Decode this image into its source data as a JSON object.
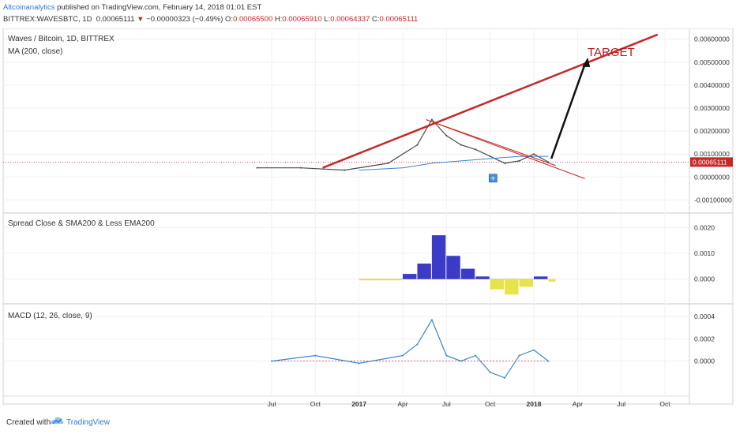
{
  "header": {
    "author": "Altcoinanalytics",
    "published": " published on TradingView.com, February 14, 2018 01:01 EST",
    "symbol": "BITTREX:WAVESBTC, 1D",
    "last": "0.00065111",
    "arrow": "▼",
    "change": "−0.00000323 (−0.49%)",
    "o_label": "O:",
    "o": "0.00065500",
    "h_label": "H:",
    "h": "0.00065910",
    "l_label": "L:",
    "l": "0.00064337",
    "c_label": "C:",
    "c": "0.00065111"
  },
  "footer": {
    "created": "Created with",
    "brand": "TradingView"
  },
  "colors": {
    "price": "#4a4a4a",
    "ma": "#3a86c8",
    "trend": "#c62828",
    "hist_pos": "#3b3bc8",
    "hist_neg": "#e7e34b",
    "macd": "#3a86c8",
    "signal": "#e08c2f",
    "macd_hist": "#e0236b",
    "last_badge": "#c62828",
    "marker": "#4a90d9"
  },
  "chart_data": [
    {
      "type": "line",
      "title": "Waves / Bitcoin, 1D, BITTREX",
      "subtitle": "MA (200, close)",
      "y_ticks": [
        "0.00600000",
        "0.00500000",
        "0.00400000",
        "0.00300000",
        "0.00200000",
        "0.00100000",
        "0.00000000",
        "-0.00100000"
      ],
      "ylim": [
        -0.0015,
        0.0064
      ],
      "x_ticks": [
        "Jul",
        "Oct",
        "2017",
        "Apr",
        "Jul",
        "Oct",
        "2018",
        "Apr",
        "Jul",
        "Oct"
      ],
      "last_value_label": "0.00065111",
      "annotation": "TARGET",
      "series": [
        {
          "name": "Close",
          "x": [
            "2016-06",
            "2016-09",
            "2016-12",
            "2017-03",
            "2017-05",
            "2017-06",
            "2017-07",
            "2017-08",
            "2017-09",
            "2017-10",
            "2017-11",
            "2017-12",
            "2018-01",
            "2018-02"
          ],
          "values": [
            0.0004,
            0.0004,
            0.0003,
            0.0006,
            0.0014,
            0.0025,
            0.0018,
            0.0014,
            0.0012,
            0.0009,
            0.0006,
            0.0007,
            0.001,
            0.00065
          ]
        },
        {
          "name": "MA (200, close)",
          "x": [
            "2017-01",
            "2017-04",
            "2017-06",
            "2017-08",
            "2017-10",
            "2017-12",
            "2018-02"
          ],
          "values": [
            0.0003,
            0.0004,
            0.0006,
            0.0007,
            0.0008,
            0.0009,
            0.0009
          ]
        }
      ]
    },
    {
      "type": "bar",
      "title": "Spread Close & SMA200 & Less EMA200",
      "y_ticks": [
        "0.0020",
        "0.0010",
        "0.0000"
      ],
      "ylim": [
        -0.0009,
        0.0025
      ],
      "series": [
        {
          "name": "Spread",
          "x": [
            "2017-01",
            "2017-04",
            "2017-05",
            "2017-06",
            "2017-07",
            "2017-08",
            "2017-09",
            "2017-10",
            "2017-11",
            "2017-12",
            "2018-01",
            "2018-02"
          ],
          "values": [
            -5e-05,
            0.0002,
            0.0006,
            0.0017,
            0.0009,
            0.0004,
            0.0001,
            -0.0004,
            -0.0006,
            -0.0003,
            0.0001,
            -0.0001
          ]
        }
      ]
    },
    {
      "type": "line",
      "title": "MACD (12, 26, close, 9)",
      "y_ticks": [
        "0.0004",
        "0.0002",
        "0.0000"
      ],
      "ylim": [
        -0.0003,
        0.0005
      ],
      "series": [
        {
          "name": "MACD",
          "x": [
            "2016-07",
            "2016-10",
            "2017-01",
            "2017-04",
            "2017-05",
            "2017-06",
            "2017-07",
            "2017-08",
            "2017-09",
            "2017-10",
            "2017-11",
            "2017-12",
            "2018-01",
            "2018-02"
          ],
          "values": [
            0.0,
            5e-05,
            -2e-05,
            5e-05,
            0.00015,
            0.00037,
            5e-05,
            0.0,
            5e-05,
            -0.0001,
            -0.00015,
            5e-05,
            0.0001,
            0.0
          ]
        }
      ]
    }
  ]
}
